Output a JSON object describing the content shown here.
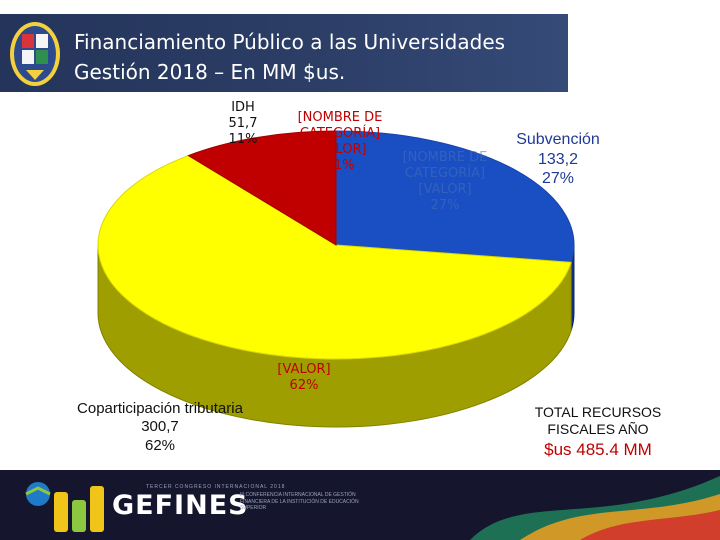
{
  "header": {
    "title_line1": "Financiamiento Público a las Universidades",
    "title_line2": "Gestión 2018 – En MM $us."
  },
  "colors": {
    "title_bg": "#2c3e66",
    "slice_blue": "#1a4fc4",
    "slice_yellow": "#ffff00",
    "slice_red": "#c00000",
    "label_red": "#c00000",
    "label_blue": "#1f3a93"
  },
  "labels": {
    "idh": [
      "IDH",
      "51,7",
      "11%"
    ],
    "category_placeholder": [
      "[NOMBRE DE",
      "CATEGORÍA]",
      "[VALOR]",
      "11%"
    ],
    "ghost_placeholder": [
      "[NOMBRE DE",
      "CATEGORÍA]",
      "[VALOR]",
      "27%"
    ],
    "subvencion": [
      "Subvención",
      "133,2",
      "27%"
    ],
    "valor_placeholder": [
      "[VALOR]",
      "62%"
    ],
    "coparticipacion": [
      "Coparticipación tributaria",
      "300,7",
      "62%"
    ]
  },
  "total": {
    "label": "TOTAL RECURSOS FISCALES AÑO",
    "amount": "$us 485.4 MM"
  },
  "footer": {
    "brand": "GEFINES",
    "top_text": "TERCER CONGRESO INTERNACIONAL 2018",
    "sub_text": "III CONFERENCIA INTERNACIONAL DE GESTIÓN FINANCIERA DE LA INSTITUCIÓN DE EDUCACIÓN SUPERIOR"
  },
  "chart_data": {
    "type": "pie",
    "style": "3d",
    "title": "",
    "slices": [
      {
        "name": "Subvención",
        "value": 133.2,
        "percent": 27,
        "color": "#1a4fc4"
      },
      {
        "name": "Coparticipación tributaria",
        "value": 300.7,
        "percent": 62,
        "color": "#ffff00"
      },
      {
        "name": "IDH",
        "value": 51.7,
        "percent": 11,
        "color": "#c00000"
      }
    ],
    "total": 485.4
  }
}
